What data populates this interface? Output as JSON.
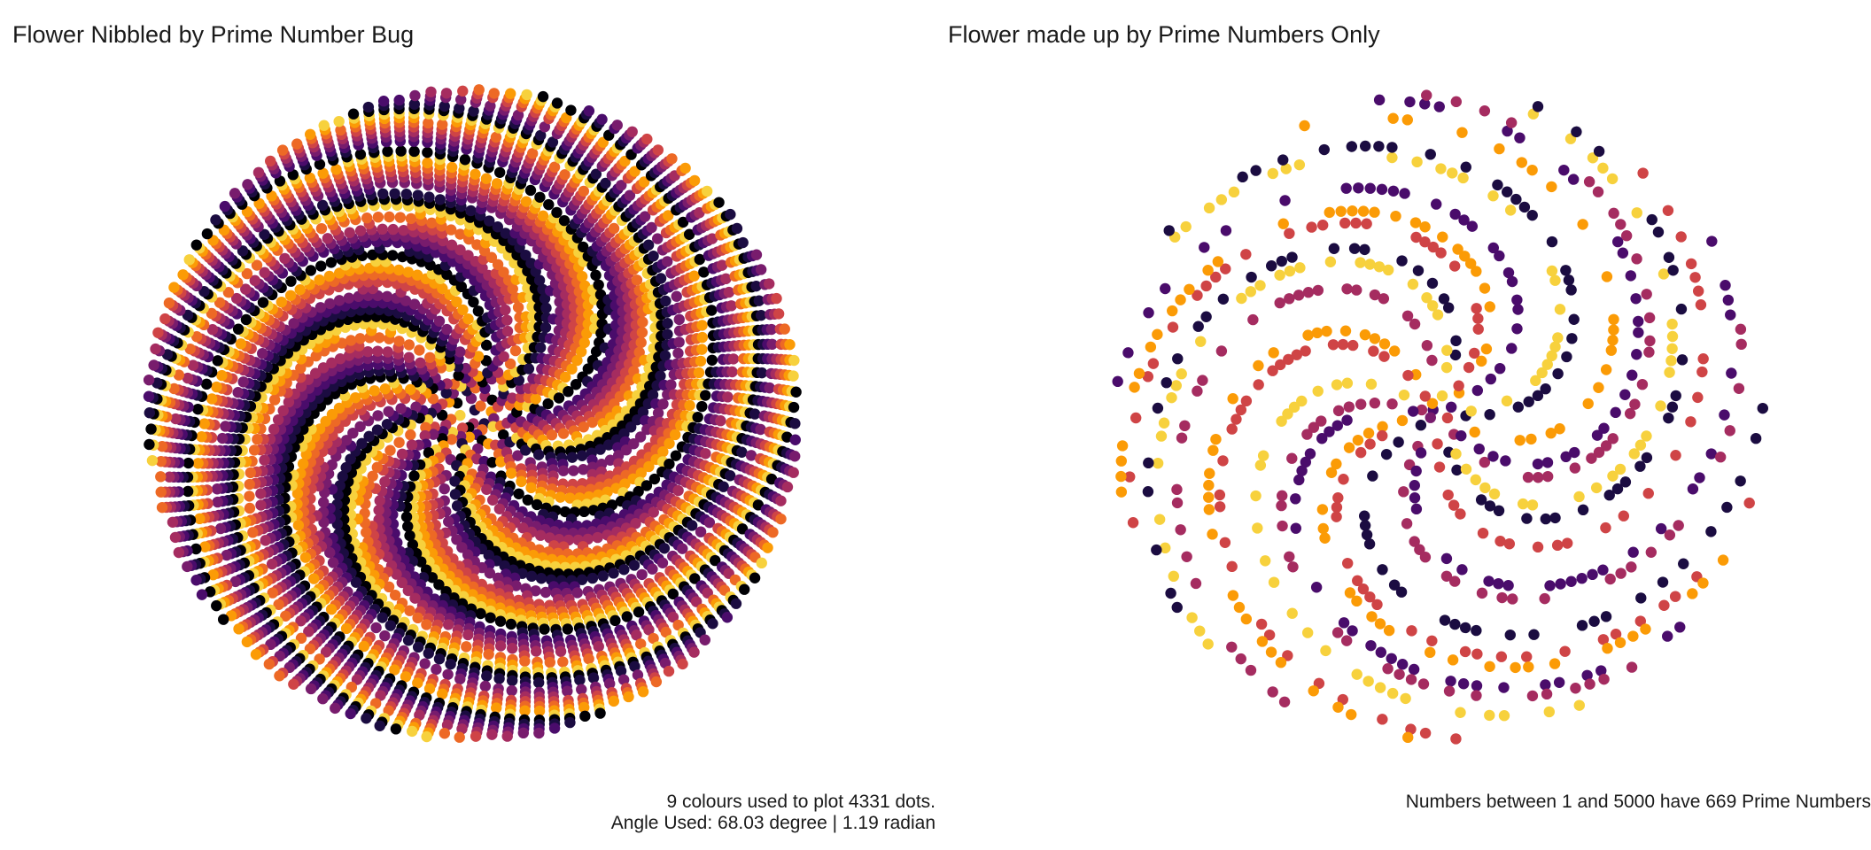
{
  "chart_data": [
    {
      "type": "scatter",
      "title": "Flower Nibbled by Prime Number Bug",
      "caption_line1": "9 colours used to plot 4331 dots.",
      "caption_line2": "Angle Used:  68.03 degree |  1.19 radian",
      "n_range": [
        1,
        5000
      ],
      "n_dots": 4331,
      "n_colours": 9,
      "angle_degree": 68.03,
      "angle_radian": 1.19,
      "subset": "non-prime",
      "x_formula": "sqrt(n) * cos(n * angle)",
      "y_formula": "sqrt(n) * sin(n * angle)",
      "axes": "hidden",
      "grid": false,
      "legend": "none"
    },
    {
      "type": "scatter",
      "title": "Flower made up by Prime Numbers Only",
      "caption": "Numbers between 1 and  5000 have 669  Prime Numbers",
      "n_range": [
        1,
        5000
      ],
      "n_primes": 669,
      "angle_degree": 68.03,
      "subset": "prime",
      "x_formula": "sqrt(n) * cos(n * angle)",
      "y_formula": "sqrt(n) * sin(n * angle)",
      "axes": "hidden",
      "grid": false,
      "legend": "none"
    }
  ],
  "palette": [
    "#000004",
    "#1b0c41",
    "#4a0c6b",
    "#781c6d",
    "#a52c60",
    "#cf4446",
    "#ed6925",
    "#fb9b06",
    "#f7d13d"
  ]
}
